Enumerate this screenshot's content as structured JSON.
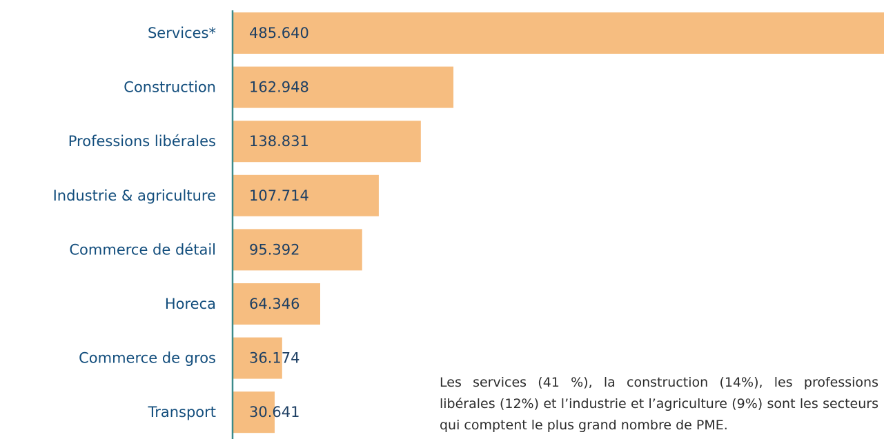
{
  "chart_data": {
    "type": "barh",
    "categories": [
      "Services*",
      "Construction",
      "Professions libérales",
      "Industrie & agriculture",
      "Commerce de détail",
      "Horeca",
      "Commerce de gros",
      "Transport"
    ],
    "values": [
      485640,
      162948,
      138831,
      107714,
      95392,
      64346,
      36174,
      30641
    ],
    "value_labels": [
      "485.640",
      "162.948",
      "138.831",
      "107.714",
      "95.392",
      "64.346",
      "36.174",
      "30.641"
    ],
    "color": "#f6bd80",
    "annotation": "Les services (41 %), la construction (14%), les professions libérales (12%) et l’industrie et l’agriculture (9%) sont les secteurs qui comptent le plus grand nombre de PME."
  }
}
